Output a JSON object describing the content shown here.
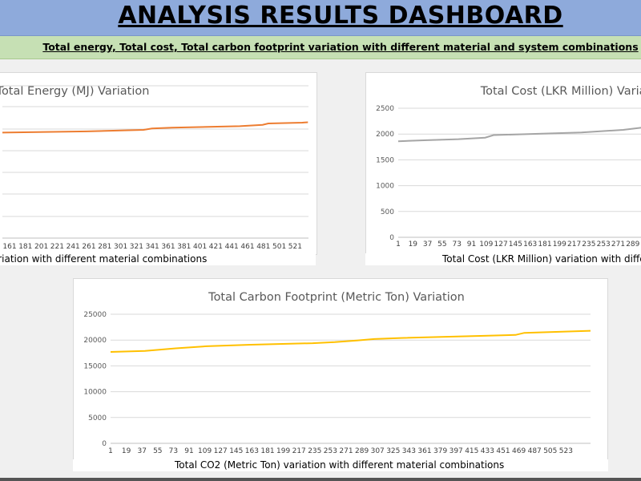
{
  "header": {
    "title": "ANALYSIS RESULTS DASHBOARD",
    "subtitle": "Total energy, Total cost, Total carbon footprint variation with different material and system combinations"
  },
  "chart_data": [
    {
      "type": "line",
      "title": "Total Energy (MJ) Variation",
      "xlabel": "Total Energy (MJ) variation with different material combinations",
      "ylabel": "",
      "x_ticks": [
        "161",
        "181",
        "201",
        "221",
        "241",
        "261",
        "281",
        "301",
        "321",
        "341",
        "361",
        "381",
        "401",
        "421",
        "441",
        "461",
        "481",
        "501",
        "521"
      ],
      "grid": true,
      "color": "#ed7d31",
      "series": [
        {
          "x": [
            1,
            150,
            250,
            265,
            300,
            420,
            460,
            470,
            530,
            540
          ],
          "values": [
            0.84,
            0.848,
            0.858,
            0.867,
            0.872,
            0.882,
            0.891,
            0.9,
            0.905,
            0.908
          ]
        }
      ]
    },
    {
      "type": "line",
      "title": "Total Cost (LKR Million) Variation",
      "xlabel": "Total Cost (LKR Million) variation with different material combinations",
      "ylabel": "",
      "ylim": [
        0,
        2500
      ],
      "y_ticks": [
        0,
        500,
        1000,
        1500,
        2000,
        2500
      ],
      "x_ticks": [
        "1",
        "19",
        "37",
        "55",
        "73",
        "91",
        "109",
        "127",
        "145",
        "163",
        "181",
        "199",
        "217",
        "235",
        "253",
        "271",
        "289"
      ],
      "grid": true,
      "color": "#a5a5a5",
      "series": [
        {
          "x": [
            1,
            35,
            73,
            105,
            115,
            220,
            270,
            285,
            300
          ],
          "values": [
            1860,
            1880,
            1900,
            1930,
            1980,
            2030,
            2080,
            2110,
            2140
          ]
        }
      ]
    },
    {
      "type": "line",
      "title": "Total Carbon Footprint (Metric Ton) Variation",
      "xlabel": "Total CO2 (Metric Ton) variation with different material combinations",
      "ylabel": "",
      "ylim": [
        0,
        25000
      ],
      "y_ticks": [
        0,
        5000,
        10000,
        15000,
        20000,
        25000
      ],
      "x_ticks": [
        "1",
        "19",
        "37",
        "55",
        "73",
        "91",
        "109",
        "127",
        "145",
        "163",
        "181",
        "199",
        "217",
        "235",
        "253",
        "271",
        "289",
        "307",
        "325",
        "343",
        "361",
        "379",
        "397",
        "415",
        "433",
        "451",
        "469",
        "487",
        "505",
        "523"
      ],
      "grid": true,
      "color": "#ffc000",
      "series": [
        {
          "x": [
            1,
            40,
            75,
            110,
            160,
            230,
            255,
            280,
            300,
            330,
            420,
            460,
            470,
            545
          ],
          "values": [
            17700,
            17900,
            18400,
            18800,
            19100,
            19400,
            19600,
            19900,
            20200,
            20400,
            20800,
            21000,
            21400,
            21800
          ]
        }
      ]
    }
  ]
}
